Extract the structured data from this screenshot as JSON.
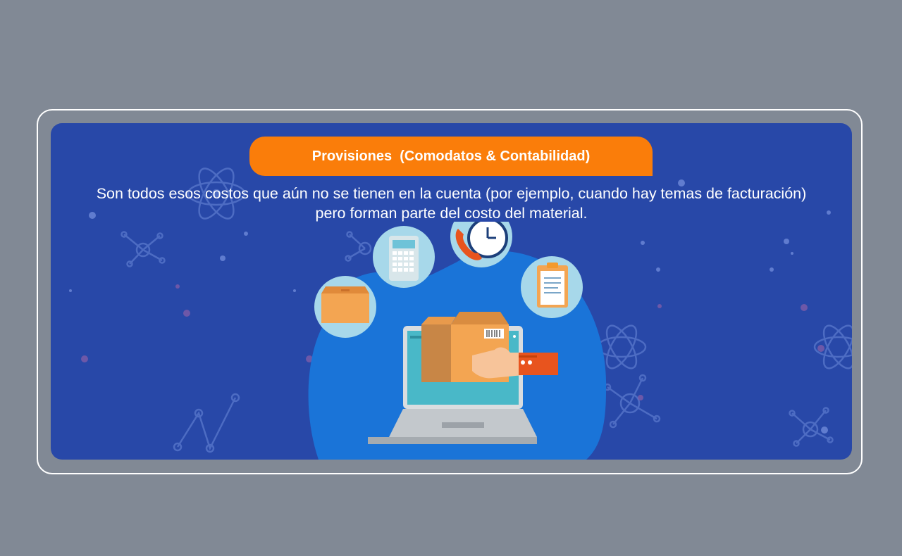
{
  "slide": {
    "title": "Provisiones  (Comodatos & Contabilidad)",
    "description": "Son todos esos costos que aún no se tienen en la cuenta (por ejemplo, cuando hay temas de facturación) pero forman parte del costo del material."
  },
  "colors": {
    "page_background": "#818995",
    "panel_background": "#2848a8",
    "accent_orange": "#fa7d0a",
    "blob_blue": "#1a74d8",
    "icon_circle": "#a7d8ea"
  },
  "illustration": {
    "icons": [
      "package-icon",
      "calculator-icon",
      "phone-icon",
      "clock-icon",
      "clipboard-icon",
      "laptop-icon",
      "credit-card-icon",
      "hand-icon"
    ]
  }
}
